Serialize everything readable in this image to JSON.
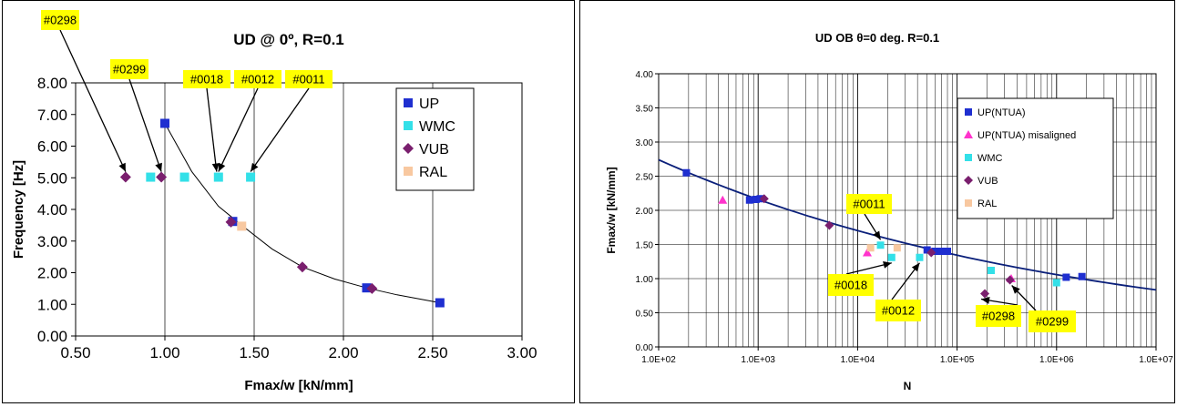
{
  "chart_data": [
    {
      "type": "scatter",
      "title": "UD @ 0º, R=0.1",
      "xlabel": "Fmax/w [kN/mm]",
      "ylabel": "Frequency [Hz]",
      "xlim": [
        0.5,
        3.0
      ],
      "ylim": [
        0,
        8
      ],
      "xticks": [
        "0.50",
        "1.00",
        "1.50",
        "2.00",
        "2.50",
        "3.00"
      ],
      "yticks": [
        "0.00",
        "1.00",
        "2.00",
        "3.00",
        "4.00",
        "5.00",
        "6.00",
        "7.00",
        "8.00"
      ],
      "grid": "vertical",
      "legend_position": "top-right",
      "series": [
        {
          "name": "UP",
          "marker": "square",
          "color": "#1f2fd0",
          "points": [
            [
              1.0,
              6.72
            ],
            [
              1.38,
              3.62
            ],
            [
              2.13,
              1.52
            ],
            [
              2.54,
              1.05
            ]
          ]
        },
        {
          "name": "WMC",
          "marker": "square",
          "color": "#33e0e8",
          "points": [
            [
              0.92,
              5.02
            ],
            [
              1.11,
              5.02
            ],
            [
              1.3,
              5.02
            ],
            [
              1.48,
              5.02
            ]
          ]
        },
        {
          "name": "VUB",
          "marker": "diamond",
          "color": "#7a1f6e",
          "points": [
            [
              0.78,
              5.02
            ],
            [
              0.98,
              5.02
            ],
            [
              1.37,
              3.6
            ],
            [
              1.77,
              2.18
            ],
            [
              2.16,
              1.5
            ]
          ]
        },
        {
          "name": "RAL",
          "marker": "square",
          "color": "#f8c8a0",
          "points": [
            [
              1.43,
              3.47
            ]
          ]
        }
      ],
      "trendline": {
        "color": "#000000",
        "points": [
          [
            1.0,
            6.72
          ],
          [
            1.15,
            5.2
          ],
          [
            1.3,
            4.1
          ],
          [
            1.43,
            3.5
          ],
          [
            1.6,
            2.75
          ],
          [
            1.77,
            2.18
          ],
          [
            1.95,
            1.8
          ],
          [
            2.13,
            1.52
          ],
          [
            2.3,
            1.3
          ],
          [
            2.54,
            1.05
          ]
        ]
      },
      "annotations": [
        {
          "label": "#0298",
          "target": [
            0.78,
            5.02
          ]
        },
        {
          "label": "#0299",
          "target": [
            0.98,
            5.02
          ]
        },
        {
          "label": "#0018",
          "target": [
            1.3,
            5.02
          ]
        },
        {
          "label": "#0012",
          "target": [
            1.3,
            5.02
          ]
        },
        {
          "label": "#0011",
          "target": [
            1.48,
            5.02
          ]
        }
      ]
    },
    {
      "type": "scatter",
      "title": "UD OB θ=0 deg. R=0.1",
      "xlabel": "N",
      "ylabel": "Fmax/w [kN/mm]",
      "xscale": "log",
      "xlim": [
        100,
        10000000
      ],
      "ylim": [
        0,
        4
      ],
      "xticks": [
        "1.0E+02",
        "1.0E+03",
        "1.0E+04",
        "1.0E+05",
        "1.0E+06",
        "1.0E+07"
      ],
      "yticks": [
        "0.00",
        "0.50",
        "1.00",
        "1.50",
        "2.00",
        "2.50",
        "3.00",
        "3.50",
        "4.00"
      ],
      "grid": "both",
      "legend_position": "top-right",
      "series": [
        {
          "name": "UP(NTUA)",
          "marker": "square",
          "color": "#1f2fd0",
          "points": [
            [
              190,
              2.55
            ],
            [
              820,
              2.15
            ],
            [
              950,
              2.16
            ],
            [
              1050,
              2.17
            ],
            [
              50000,
              1.42
            ],
            [
              60000,
              1.4
            ],
            [
              70000,
              1.4
            ],
            [
              80000,
              1.4
            ],
            [
              1250000,
              1.02
            ],
            [
              1800000,
              1.03
            ]
          ]
        },
        {
          "name": "UP(NTUA) misaligned",
          "marker": "triangle",
          "color": "#ff33cc",
          "points": [
            [
              440,
              2.15
            ],
            [
              12500,
              1.38
            ],
            [
              350000,
              1.0
            ]
          ]
        },
        {
          "name": "WMC",
          "marker": "square",
          "color": "#33e0e8",
          "points": [
            [
              17000,
              1.49
            ],
            [
              22000,
              1.31
            ],
            [
              42000,
              1.31
            ],
            [
              220000,
              1.12
            ],
            [
              1000000,
              0.94
            ]
          ]
        },
        {
          "name": "VUB",
          "marker": "diamond",
          "color": "#7a1f6e",
          "points": [
            [
              1150,
              2.17
            ],
            [
              5200,
              1.78
            ],
            [
              55000,
              1.38
            ],
            [
              190000,
              0.78
            ],
            [
              340000,
              0.98
            ]
          ]
        },
        {
          "name": "RAL",
          "marker": "square",
          "color": "#f8c8a0",
          "points": [
            [
              13500,
              1.45
            ],
            [
              25000,
              1.45
            ]
          ]
        }
      ],
      "trendline": {
        "color": "#0a1f7a",
        "points": [
          [
            100,
            2.74
          ],
          [
            1000,
            2.15
          ],
          [
            10000,
            1.7
          ],
          [
            100000,
            1.34
          ],
          [
            1000000,
            1.06
          ],
          [
            10000000,
            0.84
          ]
        ]
      },
      "annotations": [
        {
          "label": "#0011",
          "target": [
            17000,
            1.49
          ]
        },
        {
          "label": "#0018",
          "target": [
            22000,
            1.31
          ]
        },
        {
          "label": "#0012",
          "target": [
            42000,
            1.31
          ]
        },
        {
          "label": "#0298",
          "target": [
            190000,
            0.78
          ]
        },
        {
          "label": "#0299",
          "target": [
            340000,
            0.98
          ]
        }
      ]
    }
  ],
  "colors": {
    "callout_bg": "#ffff00",
    "plot_bg": "#ffffff",
    "grid": "#000000"
  }
}
